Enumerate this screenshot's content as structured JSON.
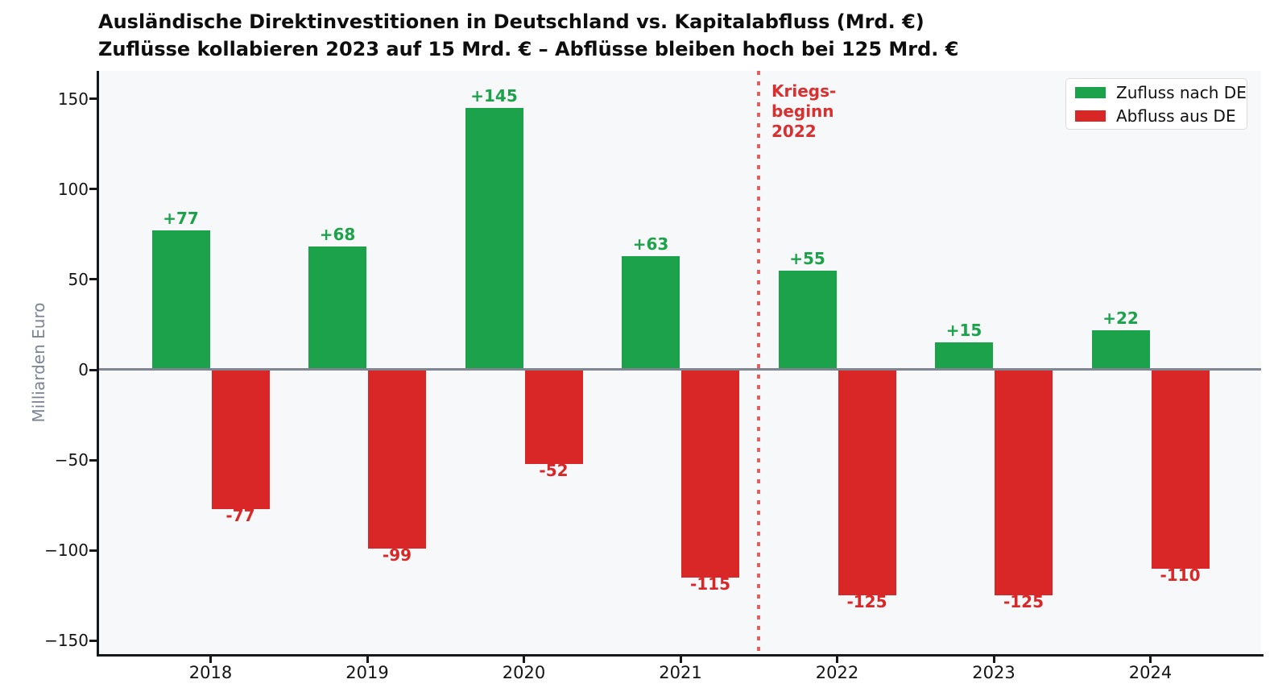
{
  "chart_data": {
    "type": "bar",
    "title": "Ausländische Direktinvestitionen in Deutschland vs. Kapitalabfluss (Mrd. €)",
    "subtitle": "Zuflüsse kollabieren 2023 auf 15 Mrd. € – Abflüsse bleiben hoch bei 125 Mrd. €",
    "ylabel": "Milliarden Euro",
    "categories": [
      "2018",
      "2019",
      "2020",
      "2021",
      "2022",
      "2023",
      "2024"
    ],
    "series": [
      {
        "name": "Zufluss nach DE",
        "color": "#1BA24A",
        "values": [
          77,
          68,
          145,
          63,
          55,
          15,
          22
        ],
        "labels": [
          "+77",
          "+68",
          "+145",
          "+63",
          "+55",
          "+15",
          "+22"
        ]
      },
      {
        "name": "Abfluss aus DE",
        "color": "#D92727",
        "values": [
          -77,
          -99,
          -52,
          -115,
          -125,
          -125,
          -110
        ],
        "labels": [
          "-77",
          "-99",
          "-52",
          "-115",
          "-125",
          "-125",
          "-110"
        ]
      }
    ],
    "yticks": [
      {
        "v": 150,
        "label": "150"
      },
      {
        "v": 100,
        "label": "100"
      },
      {
        "v": 50,
        "label": "50"
      },
      {
        "v": 0,
        "label": "0"
      },
      {
        "v": -50,
        "label": "−50"
      },
      {
        "v": -100,
        "label": "−100"
      },
      {
        "v": -150,
        "label": "−150"
      }
    ],
    "ylim": [
      -158,
      165
    ],
    "grid": false,
    "legend_position": "top-right",
    "annotation": {
      "lines": [
        "Kriegs-",
        "beginn",
        "2022"
      ],
      "color": "#D92F2F"
    },
    "vline": {
      "at_category_index": 3.5,
      "color": "#E4605E",
      "style": "dotted"
    },
    "zero_line_color": "#7F8591",
    "plot_background": "#F7F8FA"
  }
}
